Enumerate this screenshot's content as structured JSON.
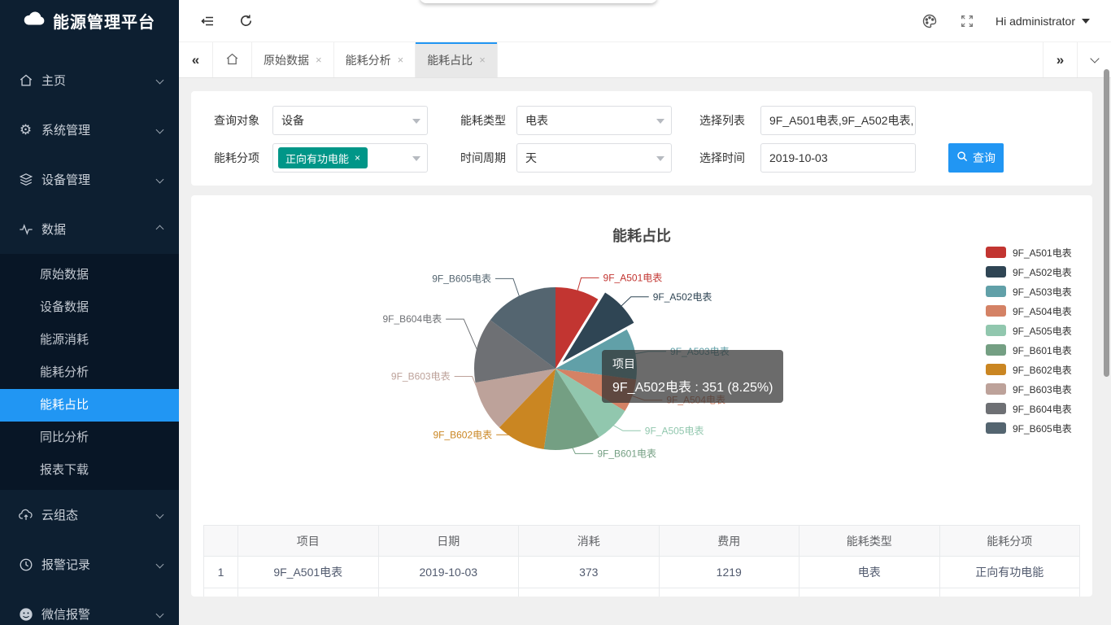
{
  "sidebar": {
    "logo": "能源管理平台",
    "items": [
      {
        "label": "主页",
        "icon": "home-icon"
      },
      {
        "label": "系统管理",
        "icon": "gear-icon"
      },
      {
        "label": "设备管理",
        "icon": "layers-icon"
      },
      {
        "label": "数据",
        "icon": "pulse-icon",
        "expanded": true
      },
      {
        "label": "云组态",
        "icon": "cloud-upload-icon"
      },
      {
        "label": "报警记录",
        "icon": "clock-icon"
      },
      {
        "label": "微信报警",
        "icon": "wechat-icon"
      }
    ],
    "submenu": [
      {
        "label": "原始数据"
      },
      {
        "label": "设备数据"
      },
      {
        "label": "能源消耗"
      },
      {
        "label": "能耗分析"
      },
      {
        "label": "能耗占比",
        "active": true
      },
      {
        "label": "同比分析"
      },
      {
        "label": "报表下载"
      }
    ]
  },
  "topbar": {
    "user": "Hi administrator"
  },
  "tabbar": {
    "tabs": [
      {
        "label": "原始数据"
      },
      {
        "label": "能耗分析"
      },
      {
        "label": "能耗占比",
        "active": true
      }
    ]
  },
  "icons": {
    "close": "×",
    "double_left": "«",
    "double_right": "»"
  },
  "filters": {
    "row1": [
      {
        "label": "查询对象",
        "value": "设备"
      },
      {
        "label": "能耗类型",
        "value": "电表"
      },
      {
        "label": "选择列表",
        "value": "9F_A501电表,9F_A502电表,"
      }
    ],
    "row2": [
      {
        "label": "能耗分项",
        "tag": "正向有功电能"
      },
      {
        "label": "时间周期",
        "value": "天"
      },
      {
        "label": "选择时间",
        "value": "2019-10-03"
      }
    ],
    "search_label": "查询",
    "tag_color": "#009688",
    "button_color": "#2196f3"
  },
  "chart_data": {
    "type": "pie",
    "title": "能耗占比",
    "legend_position": "right",
    "hovered": "9F_A502电表",
    "series": [
      {
        "name": "9F_A501电表",
        "value": 373,
        "color": "#c23531"
      },
      {
        "name": "9F_A502电表",
        "value": 351,
        "color": "#2f4554"
      },
      {
        "name": "9F_A503电表",
        "value": 430,
        "color": "#61a0a8"
      },
      {
        "name": "9F_A504电表",
        "value": 280,
        "color": "#d48265"
      },
      {
        "name": "9F_A505电表",
        "value": 310,
        "color": "#91c7ae"
      },
      {
        "name": "9F_B601电表",
        "value": 480,
        "color": "#749f83"
      },
      {
        "name": "9F_B602电表",
        "value": 420,
        "color": "#ca8622"
      },
      {
        "name": "9F_B603电表",
        "value": 430,
        "color": "#bda29a"
      },
      {
        "name": "9F_B604电表",
        "value": 550,
        "color": "#6e7074"
      },
      {
        "name": "9F_B605电表",
        "value": 630,
        "color": "#546570"
      }
    ],
    "tooltip": {
      "title": "项目",
      "value_line": "9F_A502电表 : 351 (8.25%)"
    }
  },
  "table": {
    "headers": [
      "",
      "项目",
      "日期",
      "消耗",
      "费用",
      "能耗类型",
      "能耗分项"
    ],
    "rows": [
      [
        "1",
        "9F_A501电表",
        "2019-10-03",
        "373",
        "1219",
        "电表",
        "正向有功电能"
      ]
    ],
    "partial_row": [
      "",
      "",
      "",
      "",
      "",
      "",
      ""
    ]
  }
}
